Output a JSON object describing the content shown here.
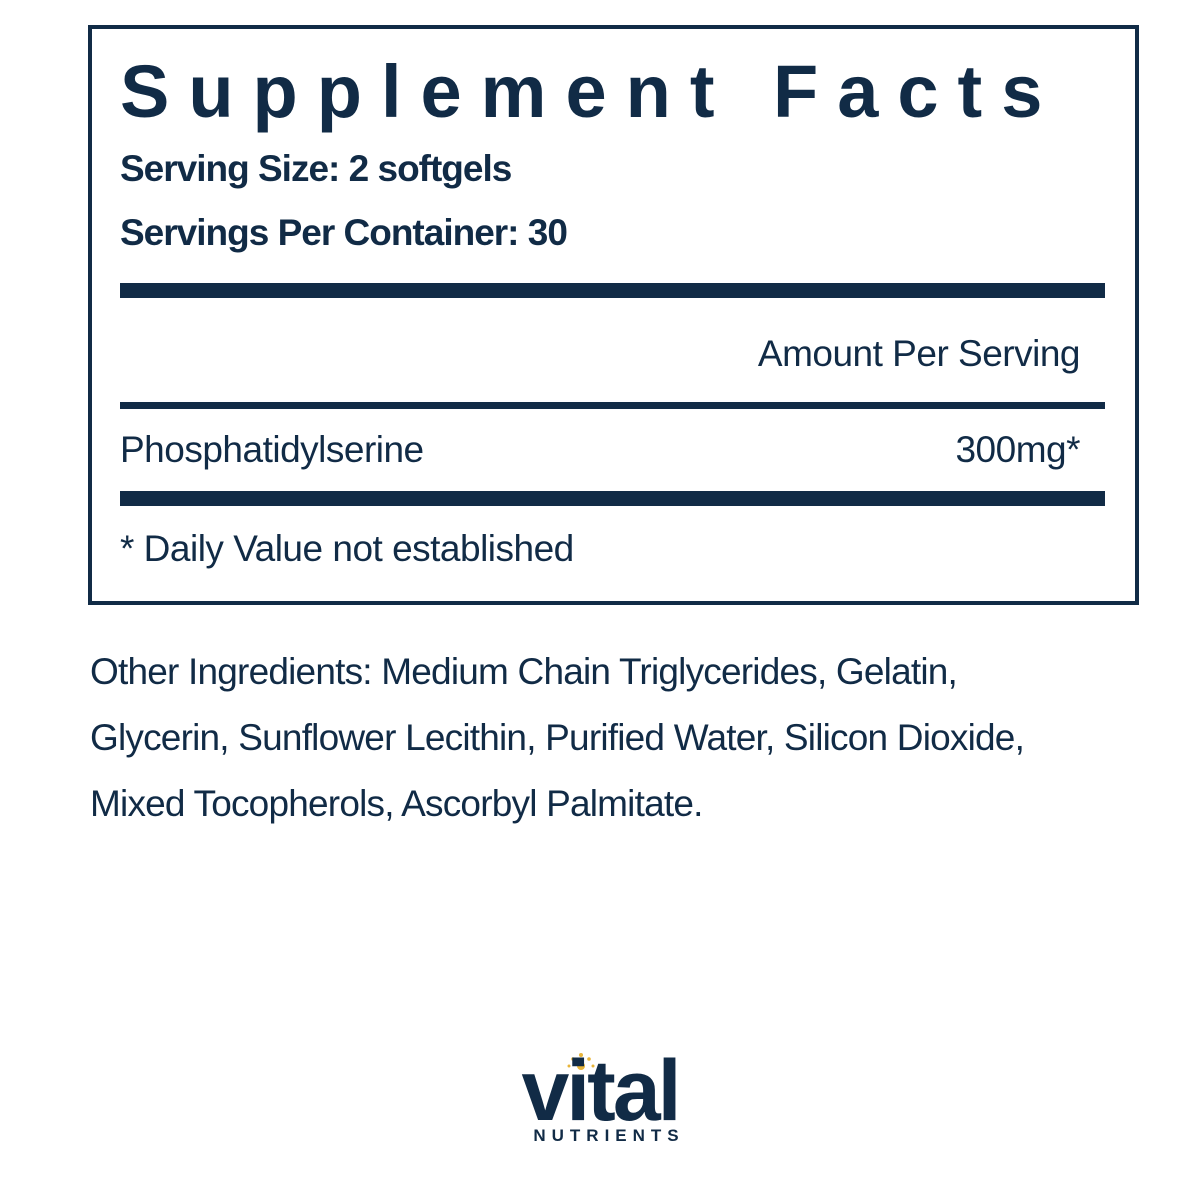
{
  "label": {
    "title": "Supplement Facts",
    "serving_size": "Serving Size: 2 softgels",
    "servings_per_container": "Servings Per Container: 30",
    "amount_header": "Amount Per Serving",
    "rows": [
      {
        "name": "Phosphatidylserine",
        "amount": "300mg*"
      }
    ],
    "footnote": "* Daily Value not established"
  },
  "other_ingredients": [
    "Other Ingredients: Medium Chain Triglycerides, Gelatin,",
    "Glycerin, Sunflower Lecithin, Purified Water, Silicon Dioxide,",
    "Mixed Tocopherols, Ascorbyl Palmitate."
  ],
  "brand": {
    "name": "vital",
    "tagline": "NUTRIENTS"
  }
}
